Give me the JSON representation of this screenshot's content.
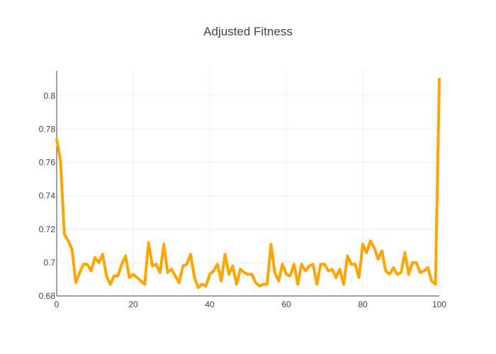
{
  "chart_data": {
    "type": "line",
    "title": "Adjusted Fitness",
    "xlabel": "",
    "ylabel": "",
    "xlim": [
      0,
      100
    ],
    "ylim": [
      0.68,
      0.815
    ],
    "x_ticks": [
      0,
      20,
      40,
      60,
      80,
      100
    ],
    "x_tick_labels": [
      "0",
      "20",
      "40",
      "60",
      "80",
      "100"
    ],
    "y_ticks": [
      0.68,
      0.7,
      0.72,
      0.74,
      0.76,
      0.78,
      0.8
    ],
    "y_tick_labels": [
      "0.68",
      "0.7",
      "0.72",
      "0.74",
      "0.76",
      "0.78",
      "0.8"
    ],
    "grid": true,
    "legend": "none",
    "series": [
      {
        "color": "#FFA500",
        "x": [
          0,
          1,
          2,
          3,
          4,
          5,
          6,
          7,
          8,
          9,
          10,
          11,
          12,
          13,
          14,
          15,
          16,
          17,
          18,
          19,
          20,
          21,
          22,
          23,
          24,
          25,
          26,
          27,
          28,
          29,
          30,
          31,
          32,
          33,
          34,
          35,
          36,
          37,
          38,
          39,
          40,
          41,
          42,
          43,
          44,
          45,
          46,
          47,
          48,
          49,
          50,
          51,
          52,
          53,
          54,
          55,
          56,
          57,
          58,
          59,
          60,
          61,
          62,
          63,
          64,
          65,
          66,
          67,
          68,
          69,
          70,
          71,
          72,
          73,
          74,
          75,
          76,
          77,
          78,
          79,
          80,
          81,
          82,
          83,
          84,
          85,
          86,
          87,
          88,
          89,
          90,
          91,
          92,
          93,
          94,
          95,
          96,
          97,
          98,
          99,
          100
        ],
        "y": [
          0.774,
          0.761,
          0.717,
          0.713,
          0.708,
          0.688,
          0.694,
          0.699,
          0.699,
          0.695,
          0.703,
          0.7,
          0.705,
          0.692,
          0.687,
          0.692,
          0.692,
          0.699,
          0.704,
          0.691,
          0.693,
          0.691,
          0.689,
          0.687,
          0.712,
          0.698,
          0.699,
          0.694,
          0.711,
          0.694,
          0.696,
          0.692,
          0.688,
          0.698,
          0.699,
          0.705,
          0.691,
          0.685,
          0.687,
          0.686,
          0.693,
          0.695,
          0.699,
          0.689,
          0.705,
          0.693,
          0.698,
          0.687,
          0.696,
          0.694,
          0.693,
          0.693,
          0.688,
          0.686,
          0.687,
          0.687,
          0.711,
          0.694,
          0.689,
          0.699,
          0.693,
          0.692,
          0.699,
          0.687,
          0.699,
          0.695,
          0.698,
          0.699,
          0.687,
          0.699,
          0.699,
          0.695,
          0.696,
          0.691,
          0.696,
          0.687,
          0.704,
          0.699,
          0.699,
          0.691,
          0.711,
          0.706,
          0.713,
          0.709,
          0.702,
          0.707,
          0.695,
          0.693,
          0.697,
          0.693,
          0.694,
          0.706,
          0.693,
          0.7,
          0.7,
          0.694,
          0.695,
          0.697,
          0.689,
          0.687,
          0.81
        ]
      }
    ]
  }
}
